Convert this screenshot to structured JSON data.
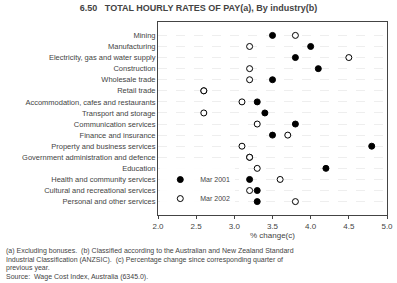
{
  "chart_data": {
    "type": "dot",
    "orientation": "horizontal",
    "title": "6.50   TOTAL HOURLY RATES OF PAY(a), By industry(b)",
    "xlabel": "% change(c)",
    "categories": [
      "Mining",
      "Manufacturing",
      "Electricity, gas and water supply",
      "Construction",
      "Wholesale trade",
      "Retail trade",
      "Accommodation, cafes and restaurants",
      "Transport and storage",
      "Communication services",
      "Finance and insurance",
      "Property and business services",
      "Government administration and defence",
      "Education",
      "Health and community services",
      "Cultural and recreational services",
      "Personal and other services"
    ],
    "series": [
      {
        "name": "Mar 2001",
        "color": "#000000",
        "marker": "circle",
        "values": [
          3.5,
          4.0,
          3.8,
          4.1,
          3.5,
          2.6,
          3.3,
          3.4,
          3.8,
          3.5,
          4.8,
          3.2,
          4.2,
          3.2,
          3.3,
          3.3
        ]
      },
      {
        "name": "Mar 2002",
        "color": "#000000",
        "marker": "circle-open",
        "values": [
          3.8,
          3.2,
          4.5,
          3.2,
          3.2,
          2.6,
          3.1,
          2.6,
          3.3,
          3.7,
          3.1,
          3.2,
          3.3,
          3.6,
          3.2,
          3.8
        ]
      }
    ],
    "xlim": [
      2.0,
      5.0
    ],
    "xticks": [
      {
        "value": 2.0,
        "label": "2.0"
      },
      2.5,
      {
        "value": 3.0,
        "label": "3.0"
      },
      3.5,
      {
        "value": 4.0,
        "label": "4.0"
      },
      4.5,
      {
        "value": 5.0,
        "label": "5.0"
      }
    ],
    "grid": true,
    "legend": "lower left",
    "annotations": [
      "(a) Excluding bonuses.  (b) Classified according to the Australian and New Zealand Standard",
      "Industrial Classification (ANZSIC).  (c) Percentage change since corresponding quarter of",
      "previous year.",
      "Source:  Wage Cost Index, Australia (6345.0)."
    ]
  }
}
